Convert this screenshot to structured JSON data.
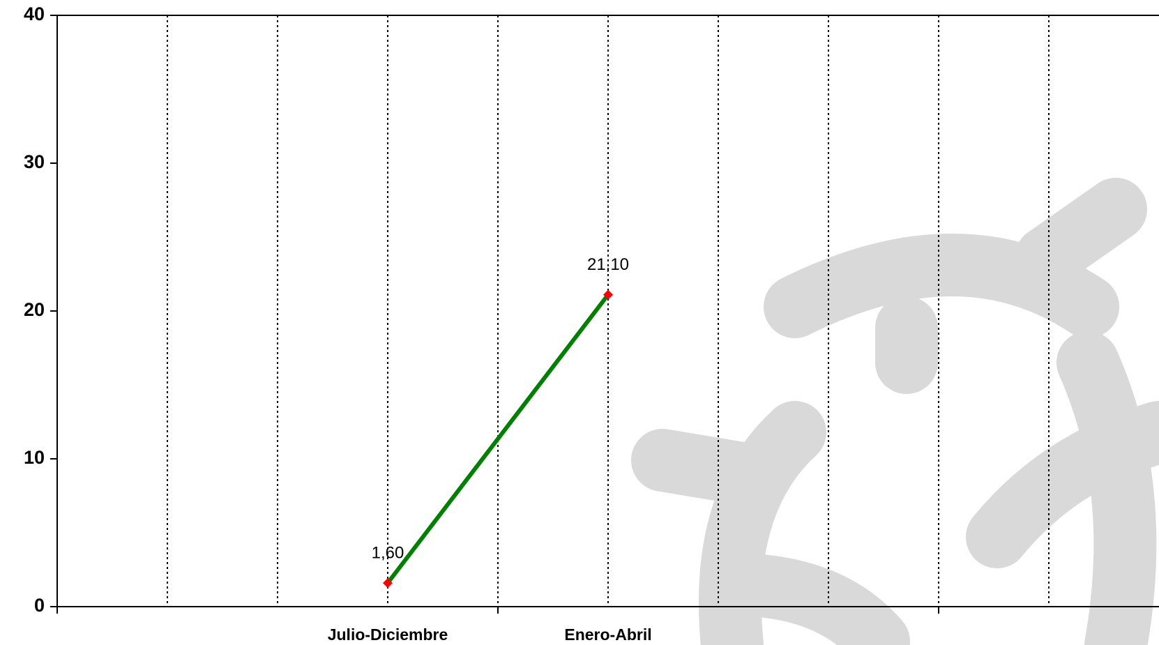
{
  "chart_data": {
    "type": "line",
    "categories": [
      null,
      "Julio-Diciembre",
      "Enero-Abril",
      null,
      null
    ],
    "values": [
      null,
      1.6,
      21.1,
      null,
      null
    ],
    "value_labels": [
      null,
      "1,60",
      "21,10",
      null,
      null
    ],
    "color": "#008000",
    "marker_color": "#ff0000",
    "ylim": [
      0,
      40
    ],
    "yticks": [
      0,
      10,
      20,
      30,
      40
    ],
    "grid": true
  }
}
